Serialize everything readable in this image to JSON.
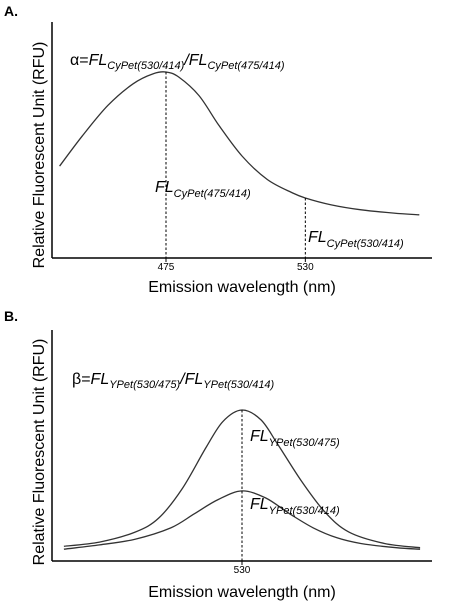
{
  "chart_data": [
    {
      "type": "line",
      "panel_label": "A.",
      "xlabel": "Emission wavelength (nm)",
      "ylabel": "Relative Fluorescent Unit (RFU)",
      "xticks": [
        {
          "label": "475",
          "value": 475
        },
        {
          "label": "530",
          "value": 530
        }
      ],
      "xlim": [
        430,
        580
      ],
      "ylim": [
        0,
        1
      ],
      "grid": false,
      "series": [
        {
          "x": [
            433,
            442,
            452,
            462,
            470,
            475,
            480,
            488,
            496,
            505,
            515,
            525,
            530,
            540,
            552,
            565,
            575
          ],
          "y": [
            0.44,
            0.62,
            0.8,
            0.93,
            0.99,
            1.0,
            0.97,
            0.86,
            0.68,
            0.5,
            0.36,
            0.28,
            0.25,
            0.21,
            0.18,
            0.16,
            0.15
          ],
          "color": "#333333"
        }
      ],
      "markers": [
        {
          "x": 475,
          "y": 1.0
        },
        {
          "x": 530,
          "y": 0.25
        }
      ],
      "formula": {
        "lhs": "α=",
        "fl1": "FL",
        "sub1": "CyPet(530/414)",
        "slash": "/",
        "fl2": "FL",
        "sub2": "CyPet(475/414)"
      },
      "annotations": [
        {
          "fl": "FL",
          "sub": "CyPet(475/414)"
        },
        {
          "fl": "FL",
          "sub": "CyPet(530/414)"
        }
      ]
    },
    {
      "type": "line",
      "panel_label": "B.",
      "xlabel": "Emission wavelength (nm)",
      "ylabel": "Relative Fluorescent Unit (RFU)",
      "xticks": [
        {
          "label": "530",
          "value": 530
        }
      ],
      "xlim": [
        450,
        610
      ],
      "ylim": [
        0,
        1
      ],
      "grid": false,
      "series": [
        {
          "x": [
            455,
            470,
            485,
            495,
            505,
            515,
            522,
            530,
            538,
            545,
            555,
            565,
            575,
            590,
            605
          ],
          "y": [
            0.04,
            0.07,
            0.14,
            0.24,
            0.45,
            0.74,
            0.92,
            1.0,
            0.93,
            0.76,
            0.5,
            0.28,
            0.14,
            0.06,
            0.03
          ],
          "color": "#333333"
        },
        {
          "x": [
            455,
            470,
            485,
            500,
            510,
            520,
            530,
            540,
            550,
            560,
            570,
            580,
            595,
            605
          ],
          "y": [
            0.02,
            0.05,
            0.09,
            0.17,
            0.27,
            0.37,
            0.43,
            0.38,
            0.27,
            0.17,
            0.1,
            0.06,
            0.03,
            0.02
          ],
          "color": "#333333"
        }
      ],
      "markers": [
        {
          "x": 530,
          "y": 1.0
        }
      ],
      "formula": {
        "lhs": "β=",
        "fl1": "FL",
        "sub1": "YPet(530/475)",
        "slash": "/",
        "fl2": "FL",
        "sub2": "YPet(530/414)"
      },
      "annotations": [
        {
          "fl": "FL",
          "sub": "YPet(530/475)"
        },
        {
          "fl": "FL",
          "sub": "YPet(530/414)"
        }
      ]
    }
  ]
}
